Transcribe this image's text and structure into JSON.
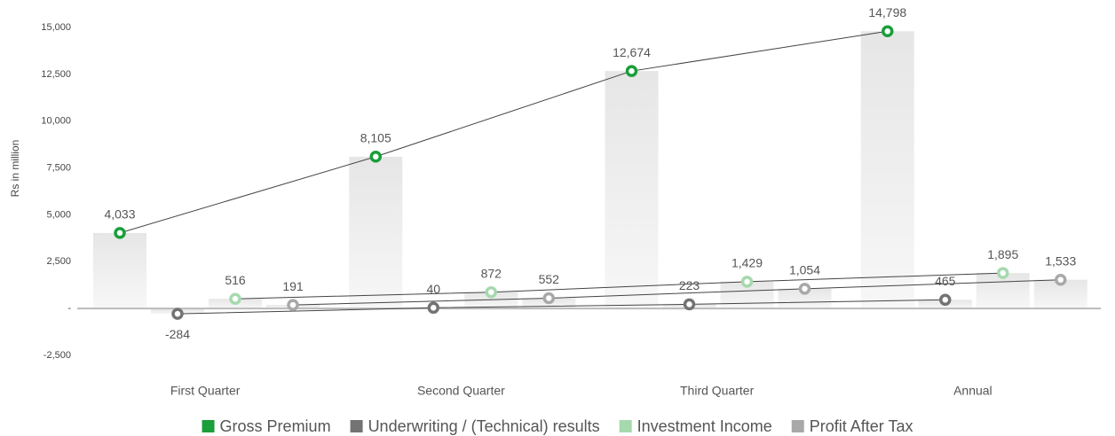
{
  "chart_data": {
    "type": "bar_line",
    "y_label": "Rs in million",
    "categories": [
      "First Quarter",
      "Second Quarter",
      "Third Quarter",
      "Annual"
    ],
    "series": [
      {
        "name": "Gross Premium",
        "color": "#1a9e3a",
        "values": [
          4033,
          8105,
          12674,
          14798
        ],
        "value_labels": [
          "4,033",
          "8,105",
          "12,674",
          "14,798"
        ]
      },
      {
        "name": "Underwriting / (Technical) results",
        "color": "#737373",
        "values": [
          -284,
          40,
          223,
          465
        ],
        "value_labels": [
          "-284",
          "40",
          "223",
          "465"
        ]
      },
      {
        "name": "Investment Income",
        "color": "#a6d9ae",
        "values": [
          516,
          872,
          1429,
          1895
        ],
        "value_labels": [
          "516",
          "872",
          "1,429",
          "1,895"
        ]
      },
      {
        "name": "Profit After Tax",
        "color": "#a8a8a8",
        "values": [
          191,
          552,
          1054,
          1533
        ],
        "value_labels": [
          "191",
          "552",
          "1,054",
          "1,533"
        ]
      }
    ],
    "ylim": [
      -2500,
      15000
    ],
    "yticks": [
      {
        "value": -2500,
        "label": "-2,500"
      },
      {
        "value": 0,
        "label": "-"
      },
      {
        "value": 2500,
        "label": "2,500"
      },
      {
        "value": 5000,
        "label": "5,000"
      },
      {
        "value": 7500,
        "label": "7,500"
      },
      {
        "value": 10000,
        "label": "10,000"
      },
      {
        "value": 12500,
        "label": "12,500"
      },
      {
        "value": 15000,
        "label": "15,000"
      }
    ],
    "legend": "bottom"
  }
}
